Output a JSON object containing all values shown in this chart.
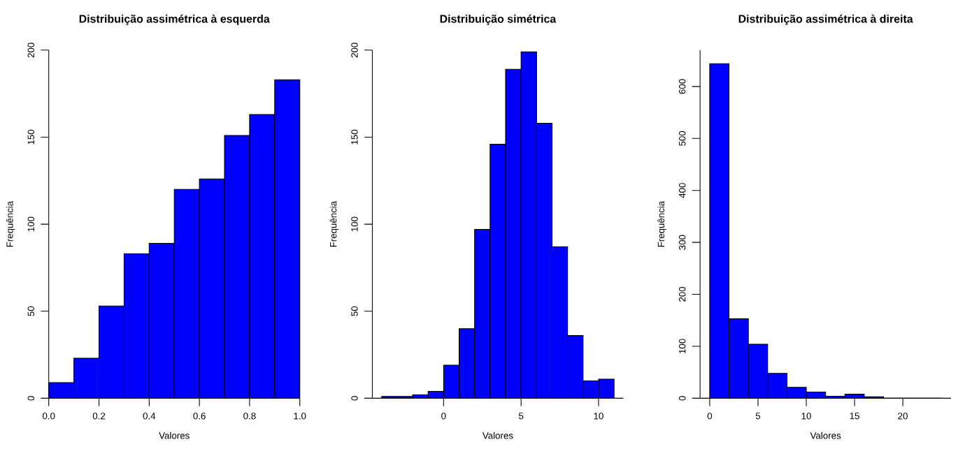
{
  "chart_data": [
    {
      "type": "histogram",
      "title": "Distribuição assimétrica à esquerda",
      "xlabel": "Valores",
      "ylabel": "Frequência",
      "color": "#0000ff",
      "bins": [
        0,
        0.1,
        0.2,
        0.3,
        0.4,
        0.5,
        0.6,
        0.7,
        0.8,
        0.9,
        1.0
      ],
      "values": [
        9,
        23,
        53,
        83,
        89,
        120,
        126,
        151,
        163,
        183
      ],
      "xlim": [
        0,
        1
      ],
      "ylim": [
        0,
        200
      ],
      "xticks": [
        {
          "value": 0,
          "label": "0.0"
        },
        0.2,
        0.4,
        0.6,
        0.8,
        {
          "value": 1,
          "label": "1.0"
        }
      ],
      "yticks": [
        0,
        50,
        100,
        150,
        200
      ]
    },
    {
      "type": "histogram",
      "title": "Distribuição simétrica",
      "xlabel": "Valores",
      "ylabel": "Frequência",
      "color": "#0000ff",
      "bins": [
        -4,
        -3,
        -2,
        -1,
        0,
        1,
        2,
        3,
        4,
        5,
        6,
        7,
        8,
        9,
        10,
        11
      ],
      "values": [
        1,
        1,
        2,
        4,
        19,
        40,
        97,
        146,
        189,
        199,
        158,
        87,
        36,
        10,
        11
      ],
      "xlim": [
        -4.6,
        11.6
      ],
      "ylim": [
        0,
        200
      ],
      "xticks": [
        0,
        5,
        10
      ],
      "yticks": [
        0,
        50,
        100,
        150,
        200
      ]
    },
    {
      "type": "histogram",
      "title": "Distribuição assimétrica à direita",
      "xlabel": "Valores",
      "ylabel": "Frequência",
      "color": "#0000ff",
      "bins": [
        0,
        2,
        4,
        6,
        8,
        10,
        12,
        14,
        16,
        18,
        20,
        22,
        24
      ],
      "values": [
        644,
        153,
        104,
        48,
        21,
        12,
        4,
        8,
        3,
        0,
        0,
        0
      ],
      "xlim": [
        -1,
        25
      ],
      "ylim": [
        0,
        670
      ],
      "xticks": [
        0,
        5,
        10,
        15,
        20
      ],
      "yticks": [
        0,
        100,
        200,
        300,
        400,
        500,
        600
      ]
    }
  ]
}
